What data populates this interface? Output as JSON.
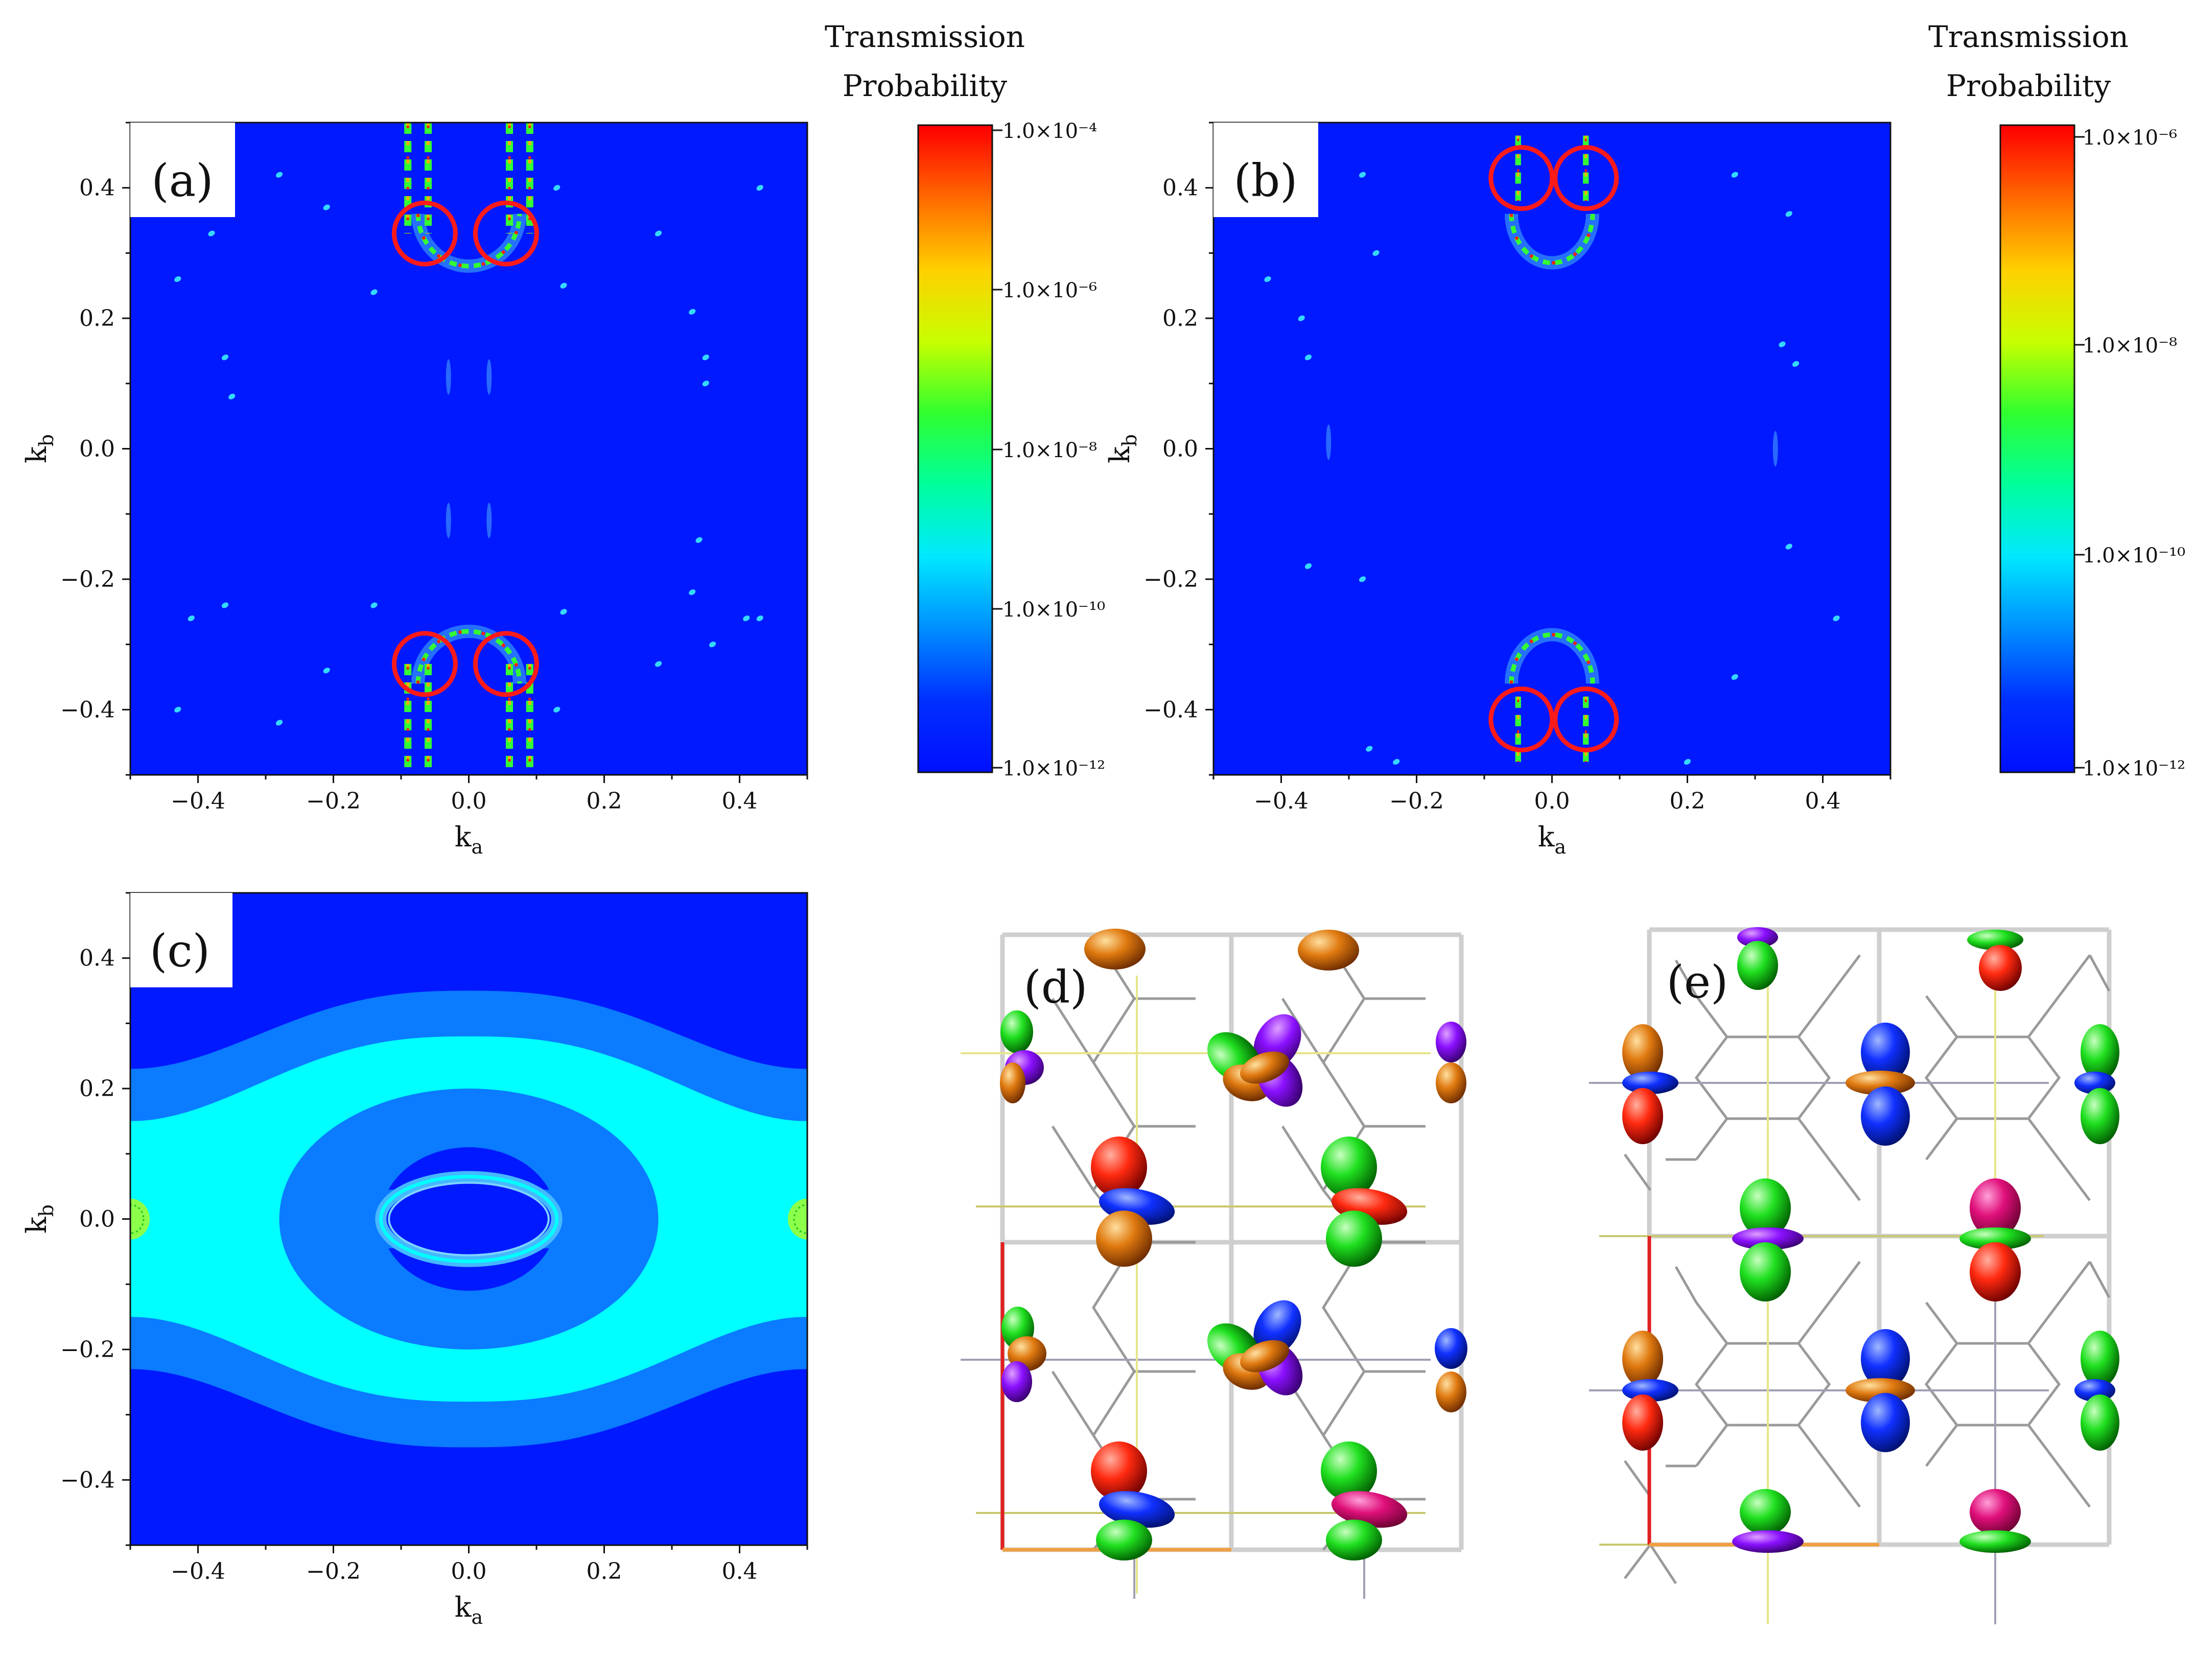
{
  "colors": {
    "background": "#0019ff",
    "cyan": "#00ffff",
    "mid_blue": "#0b7bff",
    "circle": "#ff1a1a",
    "hot": "#ff2000",
    "warm": "#ffb000",
    "green": "#33ff33",
    "lattice": "#9a9a9a",
    "cell_border": "#cfcfcf",
    "axis_red": "#e02020",
    "axis_orange": "#f0a040",
    "axis_yellow": "#e6e68c"
  },
  "panels": {
    "a": {
      "label": "(a)"
    },
    "b": {
      "label": "(b)"
    },
    "c": {
      "label": "(c)"
    },
    "d": {
      "label": "(d)"
    },
    "e": {
      "label": "(e)"
    }
  },
  "colorbars": [
    {
      "title_line1": "Transmission",
      "title_line2": "Probability",
      "ticks": [
        "1.0×10⁻⁴",
        "1.0×10⁻⁶",
        "1.0×10⁻⁸",
        "1.0×10⁻¹⁰",
        "1.0×10⁻¹²"
      ]
    },
    {
      "title_line1": "Transmission",
      "title_line2": "Probability",
      "ticks": [
        "1.0×10⁻⁶",
        "1.0×10⁻⁸",
        "1.0×10⁻¹⁰",
        "1.0×10⁻¹²"
      ]
    }
  ],
  "chart_data": [
    {
      "panel": "(a)",
      "type": "heatmap",
      "title": "",
      "xlabel": "k",
      "xlabel_sub": "a",
      "ylabel": "k",
      "ylabel_sub": "b",
      "xlim": [
        -0.5,
        0.5
      ],
      "ylim": [
        -0.5,
        0.5
      ],
      "xticks": [
        -0.4,
        -0.2,
        0.0,
        0.2,
        0.4
      ],
      "yticks": [
        -0.4,
        -0.2,
        0.0,
        0.2,
        0.4
      ],
      "xtick_labels": [
        "−0.4",
        "−0.2",
        "0.0",
        "0.2",
        "0.4"
      ],
      "ytick_labels": [
        "−0.4",
        "−0.2",
        "0.0",
        "0.2",
        "0.4"
      ],
      "colorbar_range_log10": [
        -12,
        -4
      ],
      "highlighted_circles": [
        [
          -0.065,
          0.33
        ],
        [
          0.055,
          0.33
        ],
        [
          -0.065,
          -0.33
        ],
        [
          0.055,
          -0.33
        ]
      ],
      "arcs": [
        {
          "cx": 0.0,
          "cy": 0.36,
          "rx": 0.075,
          "ry": 0.08,
          "side": "bottom"
        },
        {
          "cx": 0.0,
          "cy": -0.36,
          "rx": 0.075,
          "ry": 0.08,
          "side": "top"
        }
      ],
      "vertical_streaks": [
        {
          "x": -0.09,
          "y0": 0.33,
          "y1": 0.5
        },
        {
          "x": -0.06,
          "y0": 0.33,
          "y1": 0.5
        },
        {
          "x": 0.06,
          "y0": 0.33,
          "y1": 0.5
        },
        {
          "x": 0.09,
          "y0": 0.33,
          "y1": 0.5
        },
        {
          "x": -0.09,
          "y0": -0.5,
          "y1": -0.33
        },
        {
          "x": -0.06,
          "y0": -0.5,
          "y1": -0.33
        },
        {
          "x": 0.06,
          "y0": -0.5,
          "y1": -0.33
        },
        {
          "x": 0.09,
          "y0": -0.5,
          "y1": -0.33
        }
      ],
      "faint_streaks": [
        {
          "x": -0.03,
          "y0": 0.1,
          "y1": 0.12
        },
        {
          "x": 0.03,
          "y0": 0.1,
          "y1": 0.12
        },
        {
          "x": -0.03,
          "y0": -0.12,
          "y1": -0.1
        },
        {
          "x": 0.03,
          "y0": -0.12,
          "y1": -0.1
        }
      ],
      "scattered_points": [
        [
          -0.43,
          0.26
        ],
        [
          -0.38,
          0.33
        ],
        [
          -0.28,
          0.42
        ],
        [
          -0.21,
          0.37
        ],
        [
          -0.14,
          0.24
        ],
        [
          -0.36,
          0.14
        ],
        [
          -0.35,
          0.08
        ],
        [
          0.14,
          0.25
        ],
        [
          0.13,
          0.4
        ],
        [
          0.28,
          0.33
        ],
        [
          0.33,
          0.21
        ],
        [
          0.43,
          0.4
        ],
        [
          0.35,
          0.14
        ],
        [
          0.35,
          0.1
        ],
        [
          -0.43,
          -0.4
        ],
        [
          -0.36,
          -0.24
        ],
        [
          -0.21,
          -0.34
        ],
        [
          -0.14,
          -0.24
        ],
        [
          0.14,
          -0.25
        ],
        [
          0.13,
          -0.4
        ],
        [
          0.28,
          -0.33
        ],
        [
          0.34,
          -0.14
        ],
        [
          0.36,
          -0.3
        ],
        [
          0.41,
          -0.26
        ],
        [
          -0.41,
          -0.26
        ],
        [
          -0.28,
          -0.42
        ],
        [
          0.43,
          -0.26
        ],
        [
          0.33,
          -0.22
        ]
      ]
    },
    {
      "panel": "(b)",
      "type": "heatmap",
      "title": "",
      "xlabel": "k",
      "xlabel_sub": "a",
      "ylabel": "k",
      "ylabel_sub": "b",
      "xlim": [
        -0.5,
        0.5
      ],
      "ylim": [
        -0.5,
        0.5
      ],
      "xticks": [
        -0.4,
        -0.2,
        0.0,
        0.2,
        0.4
      ],
      "yticks": [
        -0.4,
        -0.2,
        0.0,
        0.2,
        0.4
      ],
      "xtick_labels": [
        "−0.4",
        "−0.2",
        "0.0",
        "0.2",
        "0.4"
      ],
      "ytick_labels": [
        "−0.4",
        "−0.2",
        "0.0",
        "0.2",
        "0.4"
      ],
      "colorbar_range_log10": [
        -12,
        -6
      ],
      "highlighted_circles": [
        [
          -0.045,
          0.415
        ],
        [
          0.05,
          0.415
        ],
        [
          -0.045,
          -0.415
        ],
        [
          0.05,
          -0.415
        ]
      ],
      "arcs": [
        {
          "cx": 0.0,
          "cy": 0.36,
          "rx": 0.06,
          "ry": 0.075,
          "side": "bottom"
        },
        {
          "cx": 0.0,
          "cy": -0.36,
          "rx": 0.06,
          "ry": 0.075,
          "side": "top"
        }
      ],
      "vertical_streaks": [
        {
          "x": -0.05,
          "y0": 0.38,
          "y1": 0.48
        },
        {
          "x": 0.05,
          "y0": 0.38,
          "y1": 0.48
        },
        {
          "x": -0.05,
          "y0": -0.48,
          "y1": -0.38
        },
        {
          "x": 0.05,
          "y0": -0.48,
          "y1": -0.38
        }
      ],
      "faint_streaks": [
        {
          "x": -0.33,
          "y0": 0.0,
          "y1": 0.02
        },
        {
          "x": 0.33,
          "y0": -0.01,
          "y1": 0.01
        }
      ],
      "scattered_points": [
        [
          -0.42,
          0.26
        ],
        [
          -0.36,
          0.14
        ],
        [
          -0.37,
          0.2
        ],
        [
          -0.28,
          0.42
        ],
        [
          -0.26,
          0.3
        ],
        [
          0.27,
          0.42
        ],
        [
          0.35,
          0.36
        ],
        [
          0.34,
          0.16
        ],
        [
          0.36,
          0.13
        ],
        [
          -0.36,
          -0.18
        ],
        [
          -0.28,
          -0.2
        ],
        [
          0.27,
          -0.35
        ],
        [
          0.35,
          -0.15
        ],
        [
          0.42,
          -0.26
        ],
        [
          -0.27,
          -0.46
        ],
        [
          -0.23,
          -0.48
        ],
        [
          0.2,
          -0.48
        ]
      ]
    },
    {
      "panel": "(c)",
      "type": "heatmap",
      "title": "",
      "xlabel": "k",
      "xlabel_sub": "a",
      "ylabel": "k",
      "ylabel_sub": "b",
      "xlim": [
        -0.5,
        0.5
      ],
      "ylim": [
        -0.5,
        0.5
      ],
      "xticks": [
        -0.4,
        -0.2,
        0.0,
        0.2,
        0.4
      ],
      "yticks": [
        -0.4,
        -0.2,
        0.0,
        0.2,
        0.4
      ],
      "xtick_labels": [
        "−0.4",
        "−0.2",
        "0.0",
        "0.2",
        "0.4"
      ],
      "ytick_labels": [
        "−0.4",
        "−0.2",
        "0.0",
        "0.2",
        "0.4"
      ],
      "regions": [
        {
          "name": "outer_mid_band",
          "y_edge_center": 0.35,
          "y_edge_side": 0.23
        },
        {
          "name": "cyan_band",
          "y_edge_center": 0.28,
          "y_edge_side": 0.15
        },
        {
          "name": "inner_mid_ring",
          "rx": 0.28,
          "ry": 0.2
        },
        {
          "name": "inner_core",
          "rx": 0.13,
          "ry": 0.11
        }
      ],
      "ring": {
        "rx": 0.13,
        "ry": 0.065
      },
      "edge_features": [
        [
          -0.5,
          0.0
        ],
        [
          0.5,
          0.0
        ]
      ]
    }
  ]
}
